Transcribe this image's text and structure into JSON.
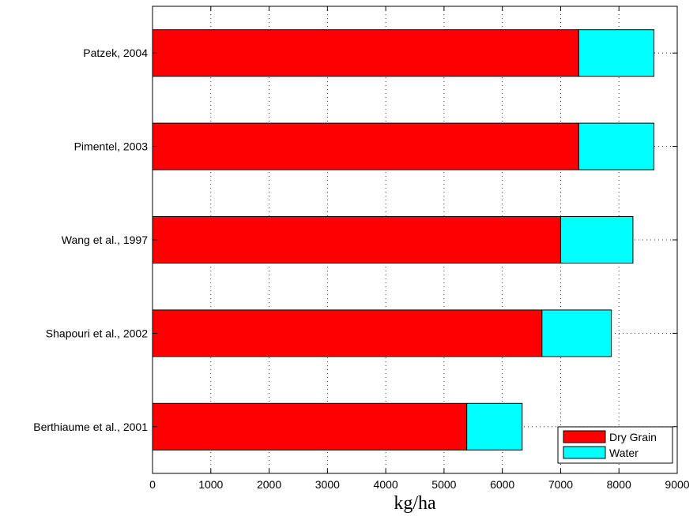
{
  "chart_data": {
    "type": "bar",
    "orientation": "horizontal",
    "stacked": true,
    "title": "",
    "xlabel": "kg/ha",
    "ylabel": "",
    "xlim": [
      0,
      9000
    ],
    "xticks": [
      0,
      1000,
      2000,
      3000,
      4000,
      5000,
      6000,
      7000,
      8000,
      9000
    ],
    "grid": true,
    "legend_position": "bottom-right",
    "categories": [
      "Patzek, 2004",
      "Pimentel, 2003",
      "Wang et al., 1997",
      "Shapouri et al., 2002",
      "Berthiaume et al., 2001"
    ],
    "series": [
      {
        "name": "Dry Grain",
        "color": "#ff0000",
        "values": [
          7310,
          7310,
          7000,
          6680,
          5390
        ]
      },
      {
        "name": "Water",
        "color": "#00ffff",
        "values": [
          1290,
          1290,
          1240,
          1190,
          950
        ]
      }
    ]
  }
}
